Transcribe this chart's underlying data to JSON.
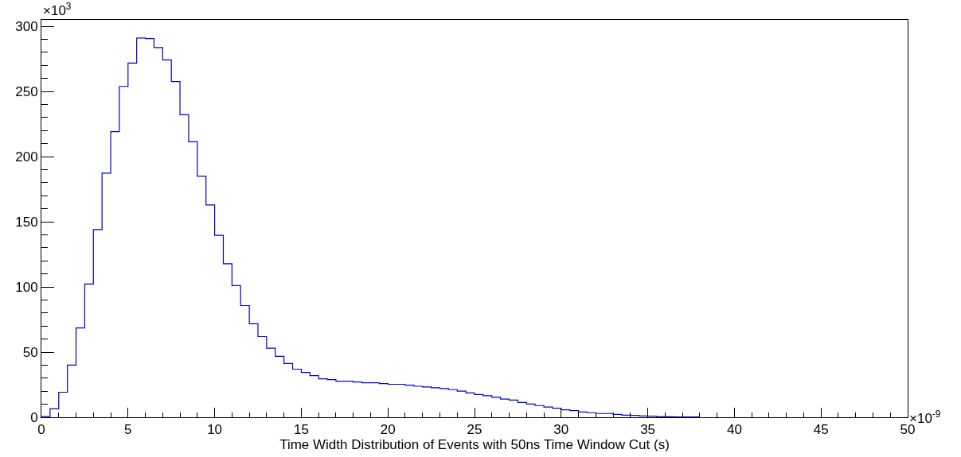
{
  "chart_data": {
    "type": "histogram",
    "xlabel": "Time Width Distribution of Events with 50ns Time Window Cut (s)",
    "annotations": [
      "×10$^{3}$",
      "×10$^{-9}$"
    ],
    "bins": [
      0,
      0.5,
      1,
      1.5,
      2,
      2.5,
      3,
      3.5,
      4,
      4.5,
      5,
      5.5,
      6,
      6.5,
      7,
      7.5,
      8,
      8.5,
      9,
      9.5,
      10,
      10.5,
      11,
      11.5,
      12,
      12.5,
      13,
      13.5,
      14,
      14.5,
      15,
      15.5,
      16,
      16.5,
      17,
      17.5,
      18,
      18.5,
      19,
      19.5,
      20,
      20.5,
      21,
      21.5,
      22,
      22.5,
      23,
      23.5,
      24,
      24.5,
      25,
      25.5,
      26,
      26.5,
      27,
      27.5,
      28,
      28.5,
      29,
      29.5,
      30,
      30.5,
      31,
      31.5,
      32,
      32.5,
      33,
      33.5,
      34,
      34.5,
      35,
      35.5,
      36,
      36.5,
      37,
      37.5,
      38
    ],
    "values": [
      0.5,
      6.5,
      19.2,
      40,
      68.6,
      102.2,
      144,
      187.3,
      219.2,
      253.9,
      271.8,
      291,
      290.6,
      283.7,
      274.3,
      257.6,
      232.2,
      211.4,
      185.1,
      163,
      139.6,
      117.8,
      101,
      85.7,
      71.7,
      61.9,
      53,
      46.8,
      41.3,
      36.9,
      34.4,
      32,
      29.5,
      28.9,
      27.7,
      27.7,
      27.1,
      26.5,
      26.5,
      25.9,
      25.3,
      25.3,
      24.6,
      23.8,
      23.2,
      22.6,
      22,
      21.2,
      20,
      18.7,
      17.5,
      16.5,
      15.3,
      14,
      13.2,
      11.4,
      10.2,
      9,
      7.8,
      6.9,
      5.7,
      5.1,
      4.1,
      3.5,
      2.9,
      2.9,
      2.2,
      1.6,
      1.4,
      1,
      0.8,
      0.4,
      0.4,
      0.3,
      0.3,
      0.3
    ],
    "color": "#0000cc",
    "xlim": [
      0,
      50
    ],
    "xticks": [
      0,
      5,
      10,
      15,
      20,
      25,
      30,
      35,
      40,
      45,
      50
    ],
    "ylim": [
      0,
      305
    ],
    "yticks": [
      0,
      50,
      100,
      150,
      200,
      250,
      300
    ],
    "legend": false
  }
}
